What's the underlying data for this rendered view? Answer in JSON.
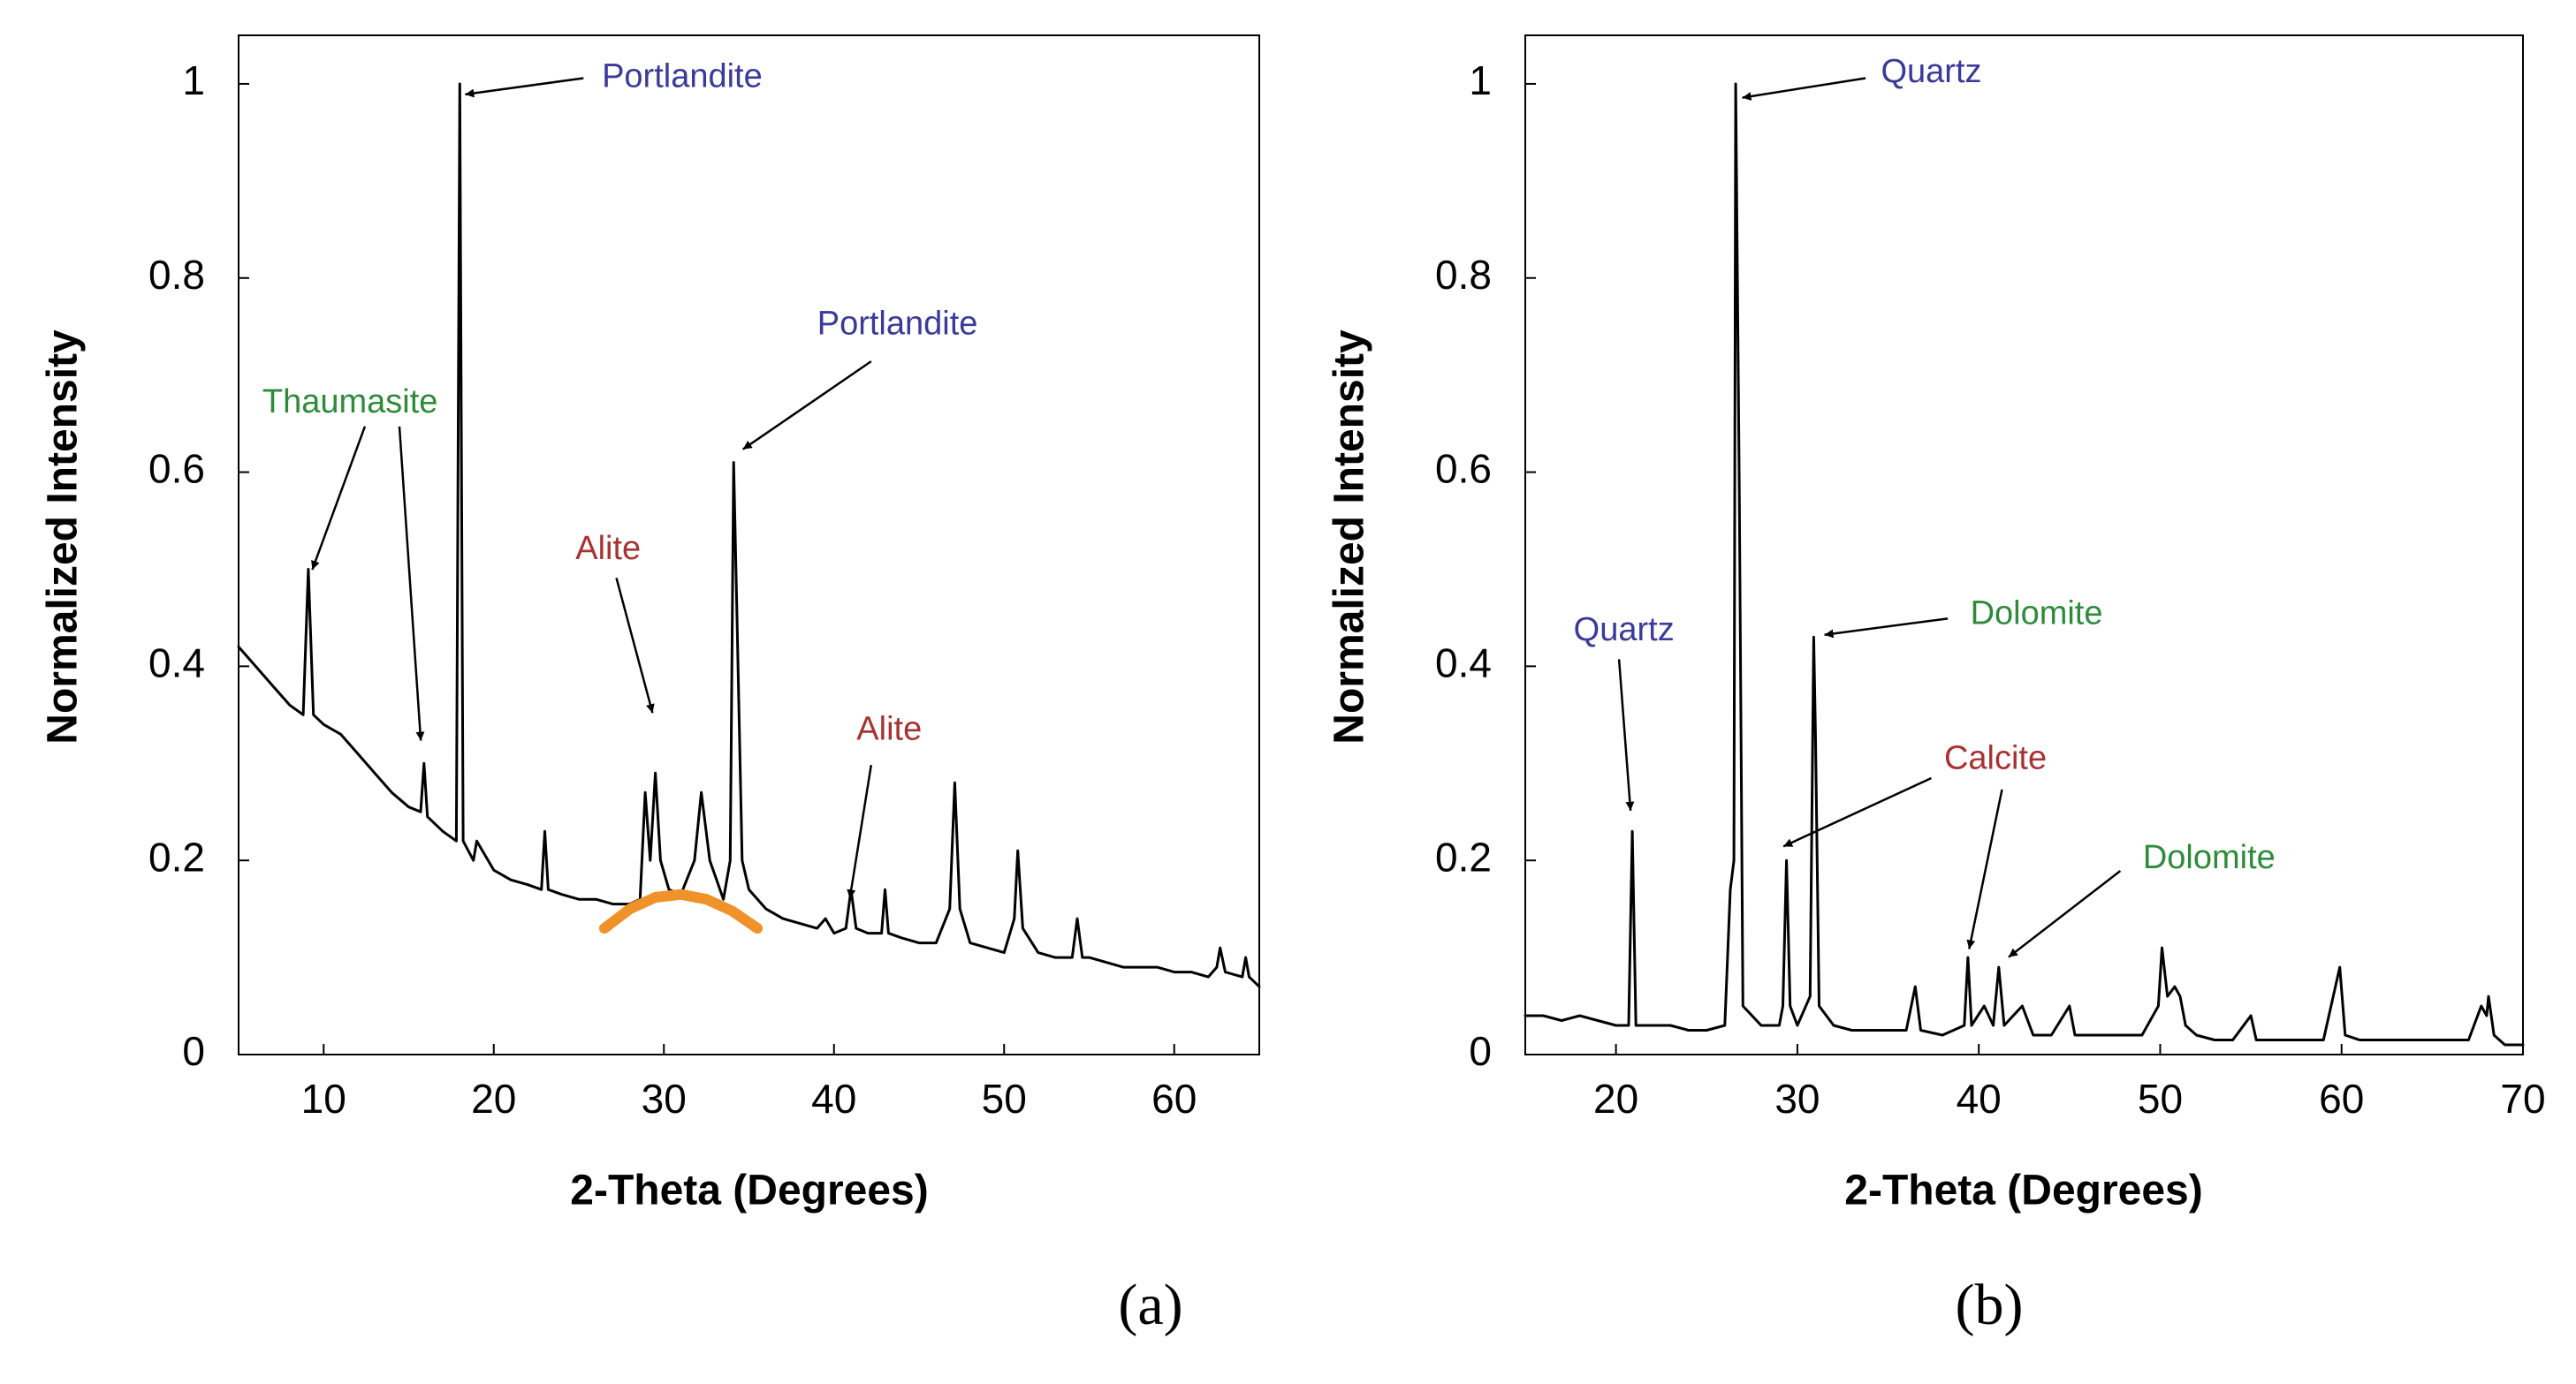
{
  "chart_data": [
    {
      "type": "line",
      "label": "(a)",
      "xlabel": "2-Theta (Degrees)",
      "ylabel": "Normalized Intensity",
      "xlim": [
        5,
        65
      ],
      "ylim": [
        0,
        1.05
      ],
      "xticks": [
        10,
        20,
        30,
        40,
        50,
        60
      ],
      "yticks": [
        0,
        0.2,
        0.4,
        0.6,
        0.8,
        1
      ],
      "series": [
        {
          "color": "#000000",
          "x": [
            5,
            6,
            7,
            8,
            8.8,
            9.1,
            9.4,
            10,
            11,
            12,
            13,
            14,
            15,
            15.7,
            15.9,
            16.1,
            17,
            17.8,
            18.0,
            18.2,
            18.8,
            19.0,
            20,
            21,
            22,
            22.8,
            23.0,
            23.2,
            24,
            25,
            26,
            27,
            28,
            28.6,
            28.9,
            29.2,
            29.5,
            29.8,
            30.3,
            31,
            31.8,
            32.2,
            32.7,
            33.5,
            33.9,
            34.1,
            34.3,
            34.6,
            35,
            36,
            37,
            38,
            39,
            39.5,
            40,
            40.7,
            41.0,
            41.3,
            42,
            42.8,
            43.0,
            43.2,
            44,
            45,
            46,
            46.8,
            47.1,
            47.4,
            48,
            49,
            50,
            50.6,
            50.8,
            51.1,
            52,
            53,
            54,
            54.3,
            54.6,
            55,
            56,
            57,
            58,
            59,
            60,
            61,
            62,
            62.5,
            62.7,
            63,
            64,
            64.2,
            64.4,
            65
          ],
          "values": [
            0.42,
            0.4,
            0.38,
            0.36,
            0.35,
            0.5,
            0.35,
            0.34,
            0.33,
            0.31,
            0.29,
            0.27,
            0.255,
            0.25,
            0.3,
            0.245,
            0.23,
            0.22,
            1.0,
            0.22,
            0.2,
            0.22,
            0.19,
            0.18,
            0.175,
            0.17,
            0.23,
            0.17,
            0.165,
            0.16,
            0.16,
            0.155,
            0.155,
            0.16,
            0.27,
            0.2,
            0.29,
            0.2,
            0.17,
            0.165,
            0.2,
            0.27,
            0.2,
            0.16,
            0.2,
            0.61,
            0.45,
            0.2,
            0.17,
            0.15,
            0.14,
            0.135,
            0.13,
            0.14,
            0.125,
            0.13,
            0.17,
            0.13,
            0.125,
            0.125,
            0.17,
            0.125,
            0.12,
            0.115,
            0.115,
            0.15,
            0.28,
            0.15,
            0.115,
            0.11,
            0.105,
            0.14,
            0.21,
            0.13,
            0.105,
            0.1,
            0.1,
            0.14,
            0.1,
            0.1,
            0.095,
            0.09,
            0.09,
            0.09,
            0.085,
            0.085,
            0.08,
            0.09,
            0.11,
            0.085,
            0.08,
            0.1,
            0.08,
            0.07
          ]
        },
        {
          "color": "#f0922a",
          "x": [
            26.5,
            28,
            29.5,
            31,
            32.5,
            34,
            35.5
          ],
          "values": [
            0.13,
            0.15,
            0.162,
            0.165,
            0.16,
            0.148,
            0.13
          ]
        }
      ],
      "annotations": [
        {
          "text": "Portlandite",
          "color": "#3a3a9a"
        },
        {
          "text": "Thaumasite",
          "color": "#2e8b3a"
        },
        {
          "text": "Alite",
          "color": "#a83232"
        },
        {
          "text": "Portlandite",
          "color": "#3a3a9a"
        },
        {
          "text": "Alite",
          "color": "#a83232"
        }
      ]
    },
    {
      "type": "line",
      "label": "(b)",
      "xlabel": "2-Theta (Degrees)",
      "ylabel": "Normalized Intensity",
      "xlim": [
        15,
        70
      ],
      "ylim": [
        0,
        1.05
      ],
      "xticks": [
        20,
        30,
        40,
        50,
        60,
        70
      ],
      "yticks": [
        0,
        0.2,
        0.4,
        0.6,
        0.8,
        1
      ],
      "series": [
        {
          "color": "#000000",
          "x": [
            15,
            16,
            17,
            18,
            19,
            20,
            20.7,
            20.9,
            21.1,
            22,
            23,
            24,
            25,
            26,
            26.3,
            26.5,
            26.6,
            26.8,
            27.0,
            28,
            29,
            29.2,
            29.4,
            29.6,
            30,
            30.7,
            30.9,
            31.0,
            31.2,
            32,
            33,
            34,
            35,
            36,
            36.5,
            36.8,
            38,
            39.2,
            39.4,
            39.6,
            40.3,
            40.8,
            41.1,
            41.4,
            42.4,
            43,
            44,
            45,
            45.3,
            46,
            47,
            48,
            49,
            49.9,
            50.1,
            50.4,
            50.8,
            51.1,
            51.4,
            52,
            53,
            54,
            55,
            55.3,
            56,
            57,
            58,
            59,
            59.9,
            60.2,
            61,
            62,
            63,
            64,
            65,
            66,
            67,
            67.7,
            68.0,
            68.1,
            68.4,
            69,
            70
          ],
          "values": [
            0.04,
            0.04,
            0.035,
            0.04,
            0.035,
            0.03,
            0.03,
            0.23,
            0.03,
            0.03,
            0.03,
            0.025,
            0.025,
            0.03,
            0.17,
            0.2,
            1.0,
            0.58,
            0.05,
            0.03,
            0.03,
            0.05,
            0.2,
            0.05,
            0.03,
            0.06,
            0.43,
            0.33,
            0.05,
            0.03,
            0.025,
            0.025,
            0.025,
            0.025,
            0.07,
            0.025,
            0.02,
            0.03,
            0.1,
            0.03,
            0.05,
            0.03,
            0.09,
            0.03,
            0.05,
            0.02,
            0.02,
            0.05,
            0.02,
            0.02,
            0.02,
            0.02,
            0.02,
            0.05,
            0.11,
            0.06,
            0.07,
            0.06,
            0.03,
            0.02,
            0.015,
            0.015,
            0.04,
            0.015,
            0.015,
            0.015,
            0.015,
            0.015,
            0.09,
            0.02,
            0.015,
            0.015,
            0.015,
            0.015,
            0.015,
            0.015,
            0.015,
            0.05,
            0.04,
            0.06,
            0.02,
            0.01,
            0.01
          ]
        }
      ],
      "annotations": [
        {
          "text": "Quartz",
          "color": "#3a3a9a"
        },
        {
          "text": "Quartz",
          "color": "#3a3a9a"
        },
        {
          "text": "Dolomite",
          "color": "#2e8b3a"
        },
        {
          "text": "Calcite",
          "color": "#a83232"
        },
        {
          "text": "Dolomite",
          "color": "#2e8b3a"
        }
      ]
    }
  ]
}
